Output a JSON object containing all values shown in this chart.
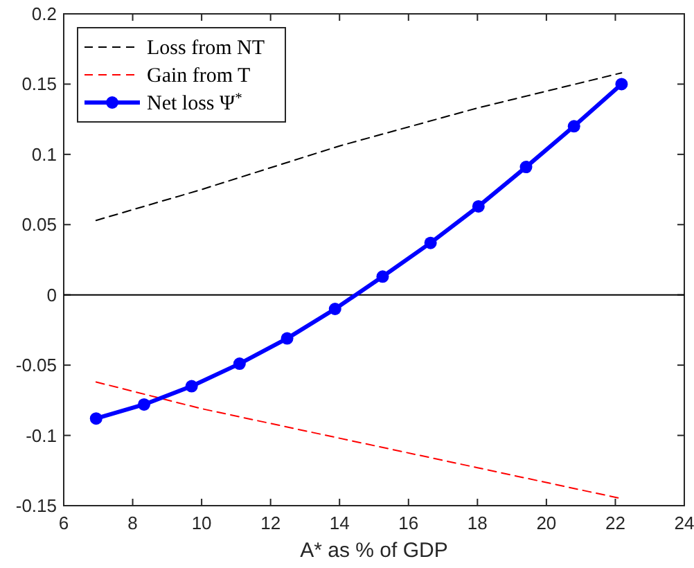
{
  "chart_data": {
    "type": "line",
    "xlabel": "A* as % of GDP",
    "xlim": [
      6,
      24
    ],
    "xticks": [
      6,
      8,
      10,
      12,
      14,
      16,
      18,
      20,
      22,
      24
    ],
    "ylim": [
      -0.15,
      0.2
    ],
    "yticks": [
      -0.15,
      -0.1,
      -0.05,
      0,
      0.05,
      0.1,
      0.15,
      0.2
    ],
    "grid": false,
    "legend": "top left",
    "ref_lines": [
      {
        "axis": "y",
        "value": 0,
        "color": "#000000",
        "line_style": "solid"
      }
    ],
    "series": [
      {
        "name": "Loss from NT",
        "color": "#000000",
        "line_style": "dashed",
        "marker": "none",
        "x": [
          6.94,
          10,
          14,
          18,
          22.18
        ],
        "values": [
          0.053,
          0.075,
          0.106,
          0.133,
          0.158
        ]
      },
      {
        "name": "Gain from T",
        "color": "#ff0000",
        "line_style": "dashed",
        "marker": "none",
        "x": [
          6.94,
          10,
          14,
          18,
          22.18
        ],
        "values": [
          -0.062,
          -0.081,
          -0.102,
          -0.123,
          -0.145
        ]
      },
      {
        "name": "Net loss Ψ$^{*}$",
        "color": "#0000ff",
        "line_style": "solid",
        "marker": "circle",
        "x": [
          6.94,
          8.33,
          9.71,
          11.1,
          12.48,
          13.87,
          15.25,
          16.64,
          18.03,
          19.41,
          20.8,
          22.18
        ],
        "values": [
          -0.088,
          -0.078,
          -0.065,
          -0.049,
          -0.031,
          -0.01,
          0.013,
          0.037,
          0.063,
          0.091,
          0.12,
          0.15
        ]
      }
    ]
  }
}
